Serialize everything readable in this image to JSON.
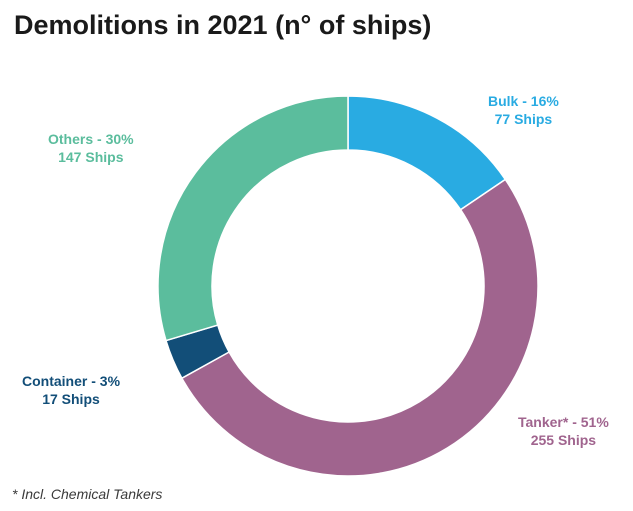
{
  "chart_data": {
    "type": "pie",
    "title": "Demolitions in 2021 (n° of ships)",
    "donut": true,
    "slices": [
      {
        "name": "Bulk",
        "percent": 16,
        "value": 77,
        "label": "Bulk - 16%",
        "sublabel": "77 Ships",
        "color": "#29abe2"
      },
      {
        "name": "Tanker*",
        "percent": 51,
        "value": 255,
        "label": "Tanker* - 51%",
        "sublabel": "255 Ships",
        "color": "#a0648e"
      },
      {
        "name": "Container",
        "percent": 3,
        "value": 17,
        "label": "Container - 3%",
        "sublabel": "17 Ships",
        "color": "#124e78"
      },
      {
        "name": "Others",
        "percent": 30,
        "value": 147,
        "label": "Others - 30%",
        "sublabel": "147 Ships",
        "color": "#5bbd9d"
      }
    ],
    "footnote": "* Incl. Chemical Tankers"
  }
}
